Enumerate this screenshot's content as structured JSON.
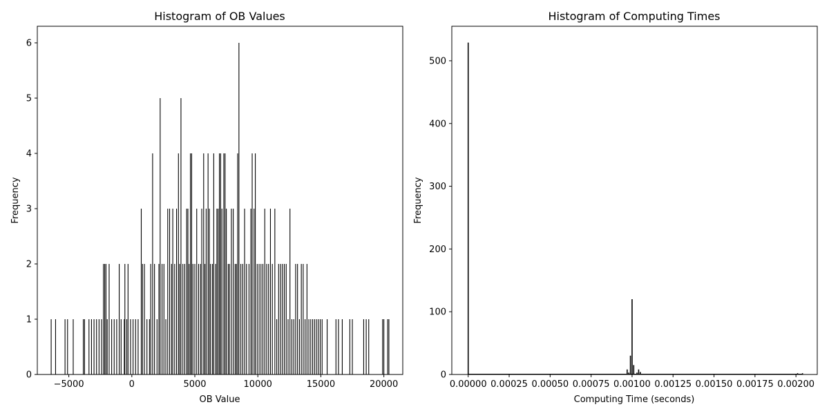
{
  "colors": {
    "bar": "#000000",
    "axes": "#000000",
    "background": "#ffffff"
  },
  "chart_data": [
    {
      "type": "bar",
      "title": "Histogram of OB Values",
      "xlabel": "OB Value",
      "ylabel": "Frequency",
      "xlim": [
        -7500,
        21500
      ],
      "ylim": [
        0,
        6.3
      ],
      "xticks": [
        {
          "value": -5000,
          "label": "−5000"
        },
        {
          "value": 0,
          "label": "0"
        },
        {
          "value": 5000,
          "label": "5000"
        },
        {
          "value": 10000,
          "label": "10000"
        },
        {
          "value": 15000,
          "label": "15000"
        },
        {
          "value": 20000,
          "label": "20000"
        }
      ],
      "yticks": [
        {
          "value": 0,
          "label": "0"
        },
        {
          "value": 1,
          "label": "1"
        },
        {
          "value": 2,
          "label": "2"
        },
        {
          "value": 3,
          "label": "3"
        },
        {
          "value": 4,
          "label": "4"
        },
        {
          "value": 5,
          "label": "5"
        },
        {
          "value": 6,
          "label": "6"
        }
      ],
      "bin_range": [
        -6400,
        20400
      ],
      "bins": [
        {
          "x": -6400,
          "y": 1
        },
        {
          "x": -6050,
          "y": 1
        },
        {
          "x": -5300,
          "y": 1
        },
        {
          "x": -5100,
          "y": 1
        },
        {
          "x": -4650,
          "y": 1
        },
        {
          "x": -3850,
          "y": 1
        },
        {
          "x": -3750,
          "y": 1
        },
        {
          "x": -3400,
          "y": 1
        },
        {
          "x": -3200,
          "y": 1
        },
        {
          "x": -3000,
          "y": 1
        },
        {
          "x": -2800,
          "y": 1
        },
        {
          "x": -2600,
          "y": 1
        },
        {
          "x": -2400,
          "y": 1
        },
        {
          "x": -2250,
          "y": 2
        },
        {
          "x": -2150,
          "y": 2
        },
        {
          "x": -2050,
          "y": 2
        },
        {
          "x": -1950,
          "y": 1
        },
        {
          "x": -1800,
          "y": 2
        },
        {
          "x": -1600,
          "y": 1
        },
        {
          "x": -1400,
          "y": 1
        },
        {
          "x": -1200,
          "y": 1
        },
        {
          "x": -1000,
          "y": 2
        },
        {
          "x": -850,
          "y": 1
        },
        {
          "x": -600,
          "y": 1
        },
        {
          "x": -550,
          "y": 2
        },
        {
          "x": -400,
          "y": 1
        },
        {
          "x": -300,
          "y": 2
        },
        {
          "x": -100,
          "y": 1
        },
        {
          "x": 100,
          "y": 1
        },
        {
          "x": 300,
          "y": 1
        },
        {
          "x": 500,
          "y": 1
        },
        {
          "x": 750,
          "y": 3
        },
        {
          "x": 850,
          "y": 2
        },
        {
          "x": 1000,
          "y": 2
        },
        {
          "x": 1200,
          "y": 1
        },
        {
          "x": 1400,
          "y": 1
        },
        {
          "x": 1500,
          "y": 2
        },
        {
          "x": 1650,
          "y": 4
        },
        {
          "x": 1800,
          "y": 2
        },
        {
          "x": 2000,
          "y": 1
        },
        {
          "x": 2150,
          "y": 2
        },
        {
          "x": 2250,
          "y": 5
        },
        {
          "x": 2400,
          "y": 2
        },
        {
          "x": 2550,
          "y": 2
        },
        {
          "x": 2700,
          "y": 1
        },
        {
          "x": 2850,
          "y": 3
        },
        {
          "x": 3000,
          "y": 3
        },
        {
          "x": 3150,
          "y": 2
        },
        {
          "x": 3250,
          "y": 3
        },
        {
          "x": 3400,
          "y": 2
        },
        {
          "x": 3550,
          "y": 3
        },
        {
          "x": 3700,
          "y": 4
        },
        {
          "x": 3800,
          "y": 2
        },
        {
          "x": 3900,
          "y": 5
        },
        {
          "x": 4050,
          "y": 2
        },
        {
          "x": 4200,
          "y": 2
        },
        {
          "x": 4350,
          "y": 3
        },
        {
          "x": 4450,
          "y": 3
        },
        {
          "x": 4550,
          "y": 2
        },
        {
          "x": 4650,
          "y": 4
        },
        {
          "x": 4750,
          "y": 4
        },
        {
          "x": 4850,
          "y": 2
        },
        {
          "x": 5000,
          "y": 2
        },
        {
          "x": 5150,
          "y": 3
        },
        {
          "x": 5300,
          "y": 2
        },
        {
          "x": 5450,
          "y": 2
        },
        {
          "x": 5550,
          "y": 3
        },
        {
          "x": 5700,
          "y": 4
        },
        {
          "x": 5800,
          "y": 2
        },
        {
          "x": 5900,
          "y": 3
        },
        {
          "x": 6050,
          "y": 4
        },
        {
          "x": 6150,
          "y": 3
        },
        {
          "x": 6250,
          "y": 2
        },
        {
          "x": 6400,
          "y": 2
        },
        {
          "x": 6500,
          "y": 4
        },
        {
          "x": 6650,
          "y": 2
        },
        {
          "x": 6750,
          "y": 3
        },
        {
          "x": 6850,
          "y": 3
        },
        {
          "x": 6950,
          "y": 4
        },
        {
          "x": 7050,
          "y": 4
        },
        {
          "x": 7150,
          "y": 3
        },
        {
          "x": 7300,
          "y": 4
        },
        {
          "x": 7400,
          "y": 4
        },
        {
          "x": 7500,
          "y": 3
        },
        {
          "x": 7650,
          "y": 2
        },
        {
          "x": 7750,
          "y": 2
        },
        {
          "x": 7900,
          "y": 3
        },
        {
          "x": 8050,
          "y": 3
        },
        {
          "x": 8200,
          "y": 2
        },
        {
          "x": 8300,
          "y": 2
        },
        {
          "x": 8400,
          "y": 4
        },
        {
          "x": 8500,
          "y": 6
        },
        {
          "x": 8650,
          "y": 2
        },
        {
          "x": 8800,
          "y": 2
        },
        {
          "x": 8950,
          "y": 3
        },
        {
          "x": 9100,
          "y": 2
        },
        {
          "x": 9300,
          "y": 2
        },
        {
          "x": 9450,
          "y": 3
        },
        {
          "x": 9550,
          "y": 4
        },
        {
          "x": 9700,
          "y": 3
        },
        {
          "x": 9800,
          "y": 4
        },
        {
          "x": 9950,
          "y": 2
        },
        {
          "x": 10100,
          "y": 2
        },
        {
          "x": 10250,
          "y": 2
        },
        {
          "x": 10400,
          "y": 2
        },
        {
          "x": 10550,
          "y": 3
        },
        {
          "x": 10700,
          "y": 2
        },
        {
          "x": 10850,
          "y": 2
        },
        {
          "x": 11000,
          "y": 3
        },
        {
          "x": 11150,
          "y": 2
        },
        {
          "x": 11350,
          "y": 3
        },
        {
          "x": 11500,
          "y": 1
        },
        {
          "x": 11650,
          "y": 2
        },
        {
          "x": 11800,
          "y": 2
        },
        {
          "x": 11950,
          "y": 2
        },
        {
          "x": 12100,
          "y": 2
        },
        {
          "x": 12250,
          "y": 2
        },
        {
          "x": 12400,
          "y": 1
        },
        {
          "x": 12550,
          "y": 3
        },
        {
          "x": 12700,
          "y": 1
        },
        {
          "x": 12850,
          "y": 1
        },
        {
          "x": 13000,
          "y": 2
        },
        {
          "x": 13150,
          "y": 2
        },
        {
          "x": 13300,
          "y": 1
        },
        {
          "x": 13450,
          "y": 2
        },
        {
          "x": 13600,
          "y": 2
        },
        {
          "x": 13750,
          "y": 1
        },
        {
          "x": 13900,
          "y": 2
        },
        {
          "x": 14050,
          "y": 1
        },
        {
          "x": 14200,
          "y": 1
        },
        {
          "x": 14350,
          "y": 1
        },
        {
          "x": 14500,
          "y": 1
        },
        {
          "x": 14650,
          "y": 1
        },
        {
          "x": 14800,
          "y": 1
        },
        {
          "x": 14950,
          "y": 1
        },
        {
          "x": 15100,
          "y": 1
        },
        {
          "x": 15500,
          "y": 1
        },
        {
          "x": 16200,
          "y": 1
        },
        {
          "x": 16400,
          "y": 1
        },
        {
          "x": 16700,
          "y": 1
        },
        {
          "x": 17300,
          "y": 1
        },
        {
          "x": 17500,
          "y": 1
        },
        {
          "x": 18400,
          "y": 1
        },
        {
          "x": 18600,
          "y": 1
        },
        {
          "x": 18800,
          "y": 1
        },
        {
          "x": 19900,
          "y": 1
        },
        {
          "x": 20000,
          "y": 1
        },
        {
          "x": 20300,
          "y": 1
        },
        {
          "x": 20400,
          "y": 1
        }
      ]
    },
    {
      "type": "bar",
      "title": "Histogram of Computing Times",
      "xlabel": "Computing Time (seconds)",
      "ylabel": "Frequency",
      "xlim": [
        -0.0001,
        0.00213
      ],
      "ylim": [
        0,
        555
      ],
      "xticks": [
        {
          "value": 0,
          "label": "0.00000"
        },
        {
          "value": 0.00025,
          "label": "0.00025"
        },
        {
          "value": 0.0005,
          "label": "0.00050"
        },
        {
          "value": 0.00075,
          "label": "0.00075"
        },
        {
          "value": 0.001,
          "label": "0.00100"
        },
        {
          "value": 0.00125,
          "label": "0.00125"
        },
        {
          "value": 0.0015,
          "label": "0.00150"
        },
        {
          "value": 0.00175,
          "label": "0.00175"
        },
        {
          "value": 0.002,
          "label": "0.00200"
        }
      ],
      "yticks": [
        {
          "value": 0,
          "label": "0"
        },
        {
          "value": 100,
          "label": "100"
        },
        {
          "value": 200,
          "label": "200"
        },
        {
          "value": 300,
          "label": "300"
        },
        {
          "value": 400,
          "label": "400"
        },
        {
          "value": 500,
          "label": "500"
        }
      ],
      "bins": [
        {
          "x": 0,
          "y": 529
        },
        {
          "x": 0.00052,
          "y": 1
        },
        {
          "x": 0.00054,
          "y": 1
        },
        {
          "x": 0.00097,
          "y": 8
        },
        {
          "x": 0.00098,
          "y": 3
        },
        {
          "x": 0.00099,
          "y": 30
        },
        {
          "x": 0.001,
          "y": 120
        },
        {
          "x": 0.00101,
          "y": 15
        },
        {
          "x": 0.00103,
          "y": 3
        },
        {
          "x": 0.00104,
          "y": 8
        },
        {
          "x": 0.00105,
          "y": 4
        },
        {
          "x": 0.00198,
          "y": 1
        },
        {
          "x": 0.00201,
          "y": 2
        },
        {
          "x": 0.00204,
          "y": 2
        }
      ]
    }
  ]
}
